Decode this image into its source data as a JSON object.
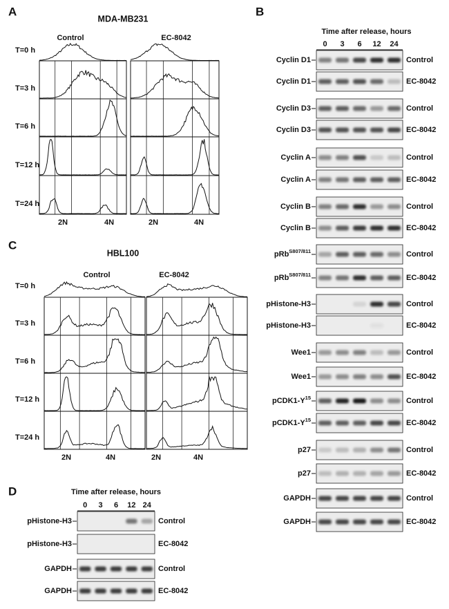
{
  "panel_A": {
    "label": "A",
    "title": "MDA-MB231",
    "columns": [
      "Control",
      "EC-8042"
    ],
    "rows": [
      "T=0 h",
      "T=3 h",
      "T=6 h",
      "T=12 h",
      "T=24 h"
    ],
    "x_labels": [
      "2N",
      "4N"
    ]
  },
  "panel_B": {
    "label": "B",
    "header": "Time after release, hours",
    "times": [
      "0",
      "3",
      "6",
      "12",
      "24"
    ],
    "blots": [
      {
        "label": "Cyclin D1",
        "condition": "Control"
      },
      {
        "label": "Cyclin D1",
        "condition": "EC-8042"
      },
      {
        "label": "Cyclin D3",
        "condition": "Control"
      },
      {
        "label": "Cyclin D3",
        "condition": "EC-8042"
      },
      {
        "label": "Cyclin A",
        "condition": "Control"
      },
      {
        "label": "Cyclin A",
        "condition": "EC-8042"
      },
      {
        "label": "Cyclin B",
        "condition": "Control"
      },
      {
        "label": "Cyclin B",
        "condition": "EC-8042"
      },
      {
        "label": "pRb",
        "sup": "S807/811",
        "condition": "Control"
      },
      {
        "label": "pRb",
        "sup": "S807/811",
        "condition": "EC-8042"
      },
      {
        "label": "pHistone-H3",
        "condition": "Control"
      },
      {
        "label": "pHistone-H3",
        "condition": "EC-8042"
      },
      {
        "label": "Wee1",
        "condition": "Control"
      },
      {
        "label": "Wee1",
        "condition": "EC-8042"
      },
      {
        "label": "pCDK1-Y",
        "sup": "15",
        "condition": "Control"
      },
      {
        "label": "pCDK1-Y",
        "sup": "15",
        "condition": "EC-8042"
      },
      {
        "label": "p27",
        "condition": "Control"
      },
      {
        "label": "p27",
        "condition": "EC-8042"
      },
      {
        "label": "GAPDH",
        "condition": "Control"
      },
      {
        "label": "GAPDH",
        "condition": "EC-8042"
      }
    ]
  },
  "panel_C": {
    "label": "C",
    "title": "HBL100",
    "columns": [
      "Control",
      "EC-8042"
    ],
    "rows": [
      "T=0 h",
      "T=3 h",
      "T=6 h",
      "T=12 h",
      "T=24 h"
    ],
    "x_labels": [
      "2N",
      "4N"
    ]
  },
  "panel_D": {
    "label": "D",
    "header": "Time after release, hours",
    "times": [
      "0",
      "3",
      "6",
      "12",
      "24"
    ],
    "blots": [
      {
        "label": "pHistone-H3",
        "condition": "Control"
      },
      {
        "label": "pHistone-H3",
        "condition": "EC-8042"
      },
      {
        "label": "GAPDH",
        "condition": "Control"
      },
      {
        "label": "GAPDH",
        "condition": "EC-8042"
      }
    ]
  }
}
